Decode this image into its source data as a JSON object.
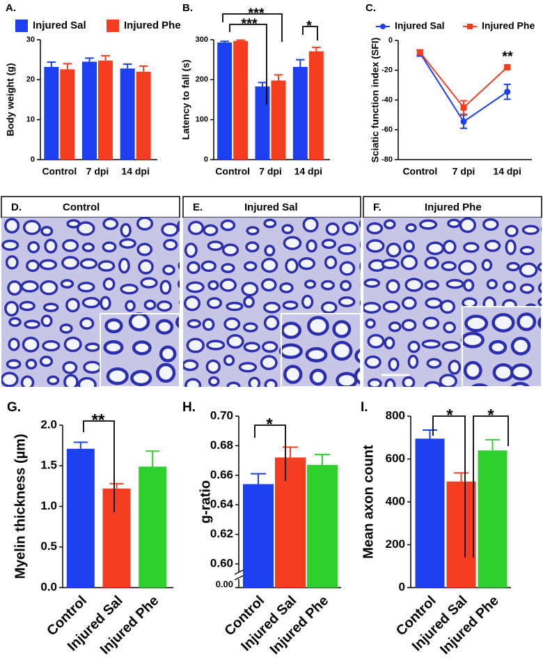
{
  "chart_data": [
    {
      "type": "bar",
      "panel_label": "A.",
      "ylabel": "Body weight (g)",
      "categories": [
        "Control",
        "7 dpi",
        "14 dpi"
      ],
      "series": [
        {
          "name": "Injured Sal",
          "color": "#1c3ff0",
          "values": [
            23.2,
            24.5,
            22.8
          ],
          "errors": [
            1.2,
            0.9,
            1.1
          ]
        },
        {
          "name": "Injured Phe",
          "color": "#f53d1f",
          "values": [
            22.6,
            24.8,
            22.0
          ],
          "errors": [
            1.4,
            1.2,
            1.4
          ]
        }
      ],
      "ylim": [
        0,
        30
      ],
      "yticks": [
        0,
        10,
        20,
        30
      ],
      "legend": "top"
    },
    {
      "type": "bar",
      "panel_label": "B.",
      "ylabel": "Latency to fall (s)",
      "categories": [
        "Control",
        "7 dpi",
        "14 dpi"
      ],
      "series": [
        {
          "color": "#1c3ff0",
          "values": [
            293,
            183,
            232
          ],
          "errors": [
            3,
            10,
            18
          ]
        },
        {
          "color": "#f53d1f",
          "values": [
            297,
            198,
            271
          ],
          "errors": [
            2,
            14,
            10
          ]
        }
      ],
      "ylim": [
        0,
        300
      ],
      "yticks": [
        0,
        100,
        200,
        300
      ],
      "annotations": [
        "***",
        "***",
        "*"
      ]
    },
    {
      "type": "line",
      "panel_label": "C.",
      "ylabel": "Sciatic function index (SFI)",
      "categories": [
        "Control",
        "7 dpi",
        "14 dpi"
      ],
      "series": [
        {
          "name": "Injured Sal",
          "color": "#1c3ff0",
          "marker": "circle",
          "values": [
            -8.5,
            -54.5,
            -34.5
          ],
          "errors": [
            2,
            4.5,
            5
          ]
        },
        {
          "name": "Injured Phe",
          "color": "#f53d1f",
          "marker": "square",
          "values": [
            -8,
            -45,
            -18
          ],
          "errors": [
            1.5,
            4.5,
            1
          ]
        }
      ],
      "ylim": [
        -80,
        0
      ],
      "yticks": [
        -80,
        -60,
        -40,
        -20,
        0
      ],
      "legend": "top",
      "annotations": [
        "**"
      ]
    },
    {
      "type": "bar",
      "panel_label": "G.",
      "ylabel": "Myelin thickness (µm)",
      "categories": [
        "Control",
        "Injured Sal",
        "Injured Phe"
      ],
      "values": [
        1.71,
        1.22,
        1.49
      ],
      "errors": [
        0.08,
        0.06,
        0.19
      ],
      "colors": [
        "#1c3ff0",
        "#f53d1f",
        "#2fd12f"
      ],
      "ylim": [
        0,
        2
      ],
      "yticks": [
        {
          "value": 0,
          "label": "0.0"
        },
        0.5,
        {
          "value": 1,
          "label": "1.0"
        },
        1.5,
        {
          "value": 2,
          "label": "2.0"
        }
      ],
      "annotations": [
        "**"
      ]
    },
    {
      "type": "bar",
      "panel_label": "H.",
      "ylabel": "g-ratio",
      "categories": [
        "Control",
        "Injured Sal",
        "Injured Phe"
      ],
      "values": [
        0.654,
        0.672,
        0.667
      ],
      "errors": [
        0.007,
        0.007,
        0.007
      ],
      "colors": [
        "#1c3ff0",
        "#f53d1f",
        "#2fd12f"
      ],
      "ylim": [
        0.6,
        0.7
      ],
      "yticks": [
        {
          "value": 0.6,
          "label": "0.60"
        },
        0.62,
        0.64,
        0.66,
        0.68,
        {
          "value": 0.7,
          "label": "0.70"
        }
      ],
      "axis_break_tick": {
        "value": 0,
        "label": "0.00"
      },
      "annotations": [
        "*"
      ]
    },
    {
      "type": "bar",
      "panel_label": "I.",
      "ylabel": "Mean axon count",
      "categories": [
        "Control",
        "Injured Sal",
        "Injured Phe"
      ],
      "values": [
        695,
        495,
        640
      ],
      "errors": [
        40,
        40,
        50
      ],
      "colors": [
        "#1c3ff0",
        "#f53d1f",
        "#2fd12f"
      ],
      "ylim": [
        0,
        800
      ],
      "yticks": [
        0,
        200,
        400,
        600,
        800
      ],
      "annotations": [
        "*",
        "*"
      ]
    }
  ],
  "image_panels": [
    {
      "label": "D.",
      "title": "Control"
    },
    {
      "label": "E.",
      "title": "Injured Sal"
    },
    {
      "label": "F.",
      "title": "Injured Phe"
    }
  ]
}
